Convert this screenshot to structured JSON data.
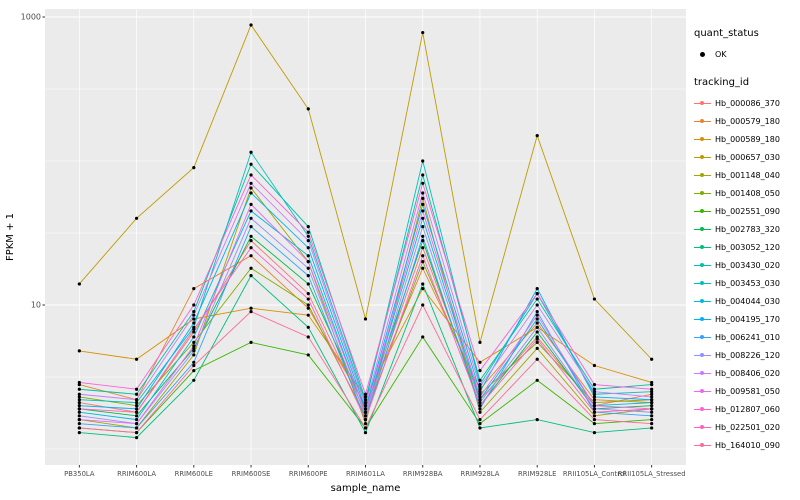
{
  "figure": {
    "panel_background": "#EBEBEB",
    "grid_color": "#FFFFFF",
    "tick_label_color": "#4D4D4D"
  },
  "chart_data": {
    "type": "line",
    "title": "",
    "xlabel": "sample_name",
    "ylabel": "FPKM + 1",
    "y_scale": "log10",
    "ylim": [
      0.8,
      1200
    ],
    "y_ticks": [
      10,
      1000
    ],
    "y_tick_labels": [
      "10",
      "1000"
    ],
    "grid_major": [
      10,
      1000
    ],
    "grid_minor": [
      1,
      3.16,
      31.6,
      100,
      316
    ],
    "grid": true,
    "legend_position": "right",
    "point_color": "#000000",
    "categories": [
      "PB350LA",
      "RRIM600LA",
      "RRIM600LE",
      "RRIM600SE",
      "RRIM600PE",
      "RRIM601LA",
      "RRIM928BA",
      "RRIM928LA",
      "RRIM928LE",
      "RRII105LA_Control",
      "RRII105LA_Stressed"
    ],
    "series": [
      {
        "name": "Hb_000086_370",
        "color": "#F8766D",
        "values": [
          2.1,
          1.8,
          6.5,
          28,
          12,
          1.8,
          25,
          2.2,
          6.0,
          2.0,
          2.4
        ]
      },
      {
        "name": "Hb_000579_180",
        "color": "#EA8331",
        "values": [
          2.8,
          2.2,
          13,
          22,
          9.5,
          2.0,
          18,
          2.6,
          7.5,
          2.2,
          2.1
        ]
      },
      {
        "name": "Hb_000589_180",
        "color": "#D89000",
        "values": [
          4.8,
          4.2,
          8.0,
          9.5,
          8.5,
          2.3,
          13,
          4.0,
          7.0,
          3.8,
          2.9
        ]
      },
      {
        "name": "Hb_000657_030",
        "color": "#C09B00",
        "values": [
          14,
          40,
          90,
          880,
          230,
          8.0,
          780,
          5.5,
          150,
          11,
          4.2
        ]
      },
      {
        "name": "Hb_001148_040",
        "color": "#A3A500",
        "values": [
          1.6,
          1.4,
          4.5,
          65,
          20,
          1.5,
          55,
          1.8,
          5.0,
          1.7,
          1.9
        ]
      },
      {
        "name": "Hb_001408_050",
        "color": "#7CAE00",
        "values": [
          2.3,
          2.0,
          5.5,
          18,
          10,
          1.7,
          20,
          2.4,
          5.5,
          2.1,
          2.2
        ]
      },
      {
        "name": "Hb_002551_090",
        "color": "#39B600",
        "values": [
          1.4,
          1.3,
          3.5,
          5.5,
          4.5,
          1.4,
          6.0,
          1.5,
          3.0,
          1.5,
          1.6
        ]
      },
      {
        "name": "Hb_002783_320",
        "color": "#00BB4E",
        "values": [
          1.9,
          1.7,
          5.0,
          30,
          14,
          1.9,
          28,
          2.0,
          6.5,
          1.9,
          2.0
        ]
      },
      {
        "name": "Hb_003052_120",
        "color": "#00BF7D",
        "values": [
          1.3,
          1.2,
          3.0,
          16,
          7.0,
          1.3,
          14,
          1.4,
          1.6,
          1.3,
          1.4
        ]
      },
      {
        "name": "Hb_003430_020",
        "color": "#00C1A3",
        "values": [
          2.6,
          2.4,
          9.0,
          95,
          35,
          2.2,
          80,
          3.0,
          11,
          2.6,
          2.8
        ]
      },
      {
        "name": "Hb_003453_030",
        "color": "#00BFC4",
        "values": [
          2.2,
          2.1,
          7.0,
          115,
          30,
          2.1,
          100,
          2.8,
          12,
          2.4,
          2.5
        ]
      },
      {
        "name": "Hb_004044_030",
        "color": "#00BAE0",
        "values": [
          1.8,
          1.6,
          6.0,
          45,
          22,
          1.8,
          40,
          2.2,
          8.0,
          2.0,
          2.1
        ]
      },
      {
        "name": "Hb_004195_170",
        "color": "#00B0F6",
        "values": [
          2.0,
          1.9,
          7.5,
          60,
          25,
          1.9,
          50,
          2.5,
          13,
          2.3,
          2.2
        ]
      },
      {
        "name": "Hb_006241_010",
        "color": "#35A2FF",
        "values": [
          1.5,
          1.4,
          4.0,
          35,
          16,
          1.6,
          30,
          1.9,
          9.0,
          1.8,
          1.7
        ]
      },
      {
        "name": "Hb_008226_120",
        "color": "#9590FF",
        "values": [
          1.7,
          1.5,
          4.8,
          40,
          18,
          1.7,
          35,
          2.1,
          7.0,
          1.9,
          1.8
        ]
      },
      {
        "name": "Hb_008406_020",
        "color": "#C77CFF",
        "values": [
          2.4,
          2.2,
          8.5,
          70,
          28,
          2.0,
          60,
          2.7,
          10,
          2.5,
          2.3
        ]
      },
      {
        "name": "Hb_009581_050",
        "color": "#E76BF3",
        "values": [
          1.6,
          1.5,
          5.2,
          50,
          20,
          1.8,
          45,
          2.3,
          8.5,
          2.0,
          1.9
        ]
      },
      {
        "name": "Hb_012807_060",
        "color": "#FA62DB",
        "values": [
          2.9,
          2.6,
          10,
          80,
          32,
          2.4,
          70,
          3.5,
          12,
          2.8,
          2.6
        ]
      },
      {
        "name": "Hb_022501_020",
        "color": "#FF62BC",
        "values": [
          1.9,
          1.8,
          6.8,
          25,
          11,
          1.6,
          22,
          2.0,
          5.8,
          1.8,
          1.9
        ]
      },
      {
        "name": "Hb_164010_090",
        "color": "#FF6A98",
        "values": [
          1.4,
          1.3,
          3.8,
          9.0,
          6.0,
          1.4,
          10,
          1.6,
          4.2,
          1.6,
          1.5
        ]
      }
    ]
  },
  "legend": {
    "quant_status_title": "quant_status",
    "quant_status_items": [
      {
        "label": "OK",
        "marker": "point",
        "color": "#000000"
      }
    ],
    "tracking_id_title": "tracking_id"
  }
}
